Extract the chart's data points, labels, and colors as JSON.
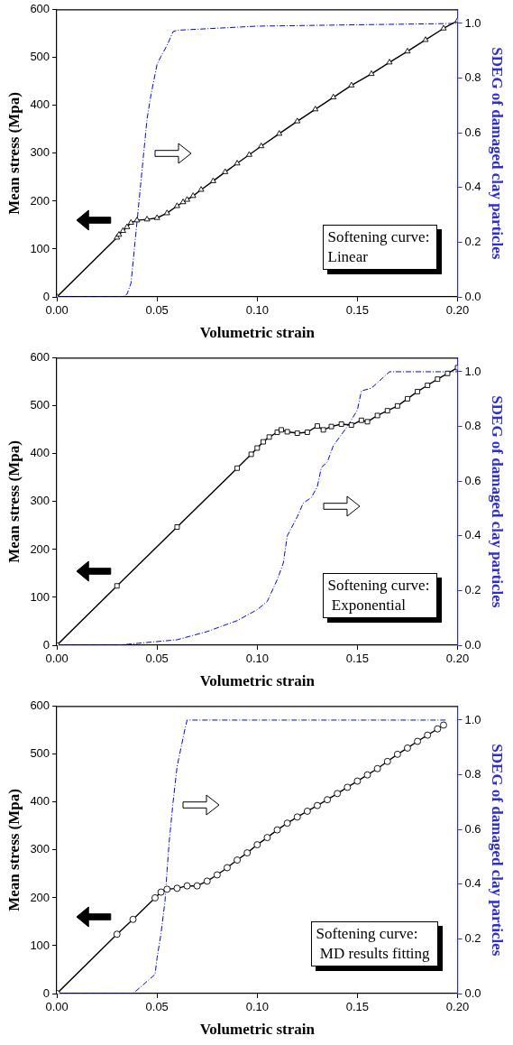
{
  "chart_data": [
    {
      "type": "line",
      "xlabel": "Volumetric strain",
      "ylabel": "Mean stress (Mpa)",
      "y2label": "SDEG of damaged clay particles",
      "xlim": [
        0,
        0.2
      ],
      "xticks": [
        {
          "value": 0,
          "label": "0.00"
        },
        {
          "value": 0.05,
          "label": "0.05"
        },
        {
          "value": 0.1,
          "label": "0.10"
        },
        {
          "value": 0.15,
          "label": "0.15"
        },
        {
          "value": 0.2,
          "label": "0.20"
        }
      ],
      "ylim": [
        0,
        600
      ],
      "yticks": [
        0,
        100,
        200,
        300,
        400,
        500,
        600
      ],
      "y2lim": [
        0,
        1.05
      ],
      "y2ticks": [
        {
          "value": 0,
          "label": "0.0"
        },
        {
          "value": 0.2,
          "label": "0.2"
        },
        {
          "value": 0.4,
          "label": "0.4"
        },
        {
          "value": 0.6,
          "label": "0.6"
        },
        {
          "value": 0.8,
          "label": "0.8"
        },
        {
          "value": 1,
          "label": "1.0"
        }
      ],
      "grid": false,
      "legend": false,
      "annotations": [
        "Softening curve:\nLinear"
      ],
      "series": [
        {
          "color": "#000000",
          "marker": "triangle",
          "line_style": "solid",
          "x": [
            0,
            0.03,
            0.031,
            0.033,
            0.035,
            0.037,
            0.04,
            0.045,
            0.05,
            0.055,
            0.06,
            0.063,
            0.065,
            0.068,
            0.072,
            0.078,
            0.084,
            0.09,
            0.096,
            0.102,
            0.111,
            0.12,
            0.129,
            0.138,
            0.147,
            0.157,
            0.166,
            0.175,
            0.184,
            0.193,
            0.2
          ],
          "values": [
            0,
            124,
            130,
            138,
            146,
            155,
            160,
            162,
            165,
            175,
            190,
            198,
            203,
            211,
            224,
            242,
            261,
            279,
            297,
            315,
            341,
            367,
            392,
            417,
            442,
            466,
            490,
            513,
            537,
            561,
            577
          ]
        },
        {
          "color": "#0000ff",
          "marker": "none",
          "line_style": "dashed",
          "axis": "y2",
          "x": [
            0,
            0.033,
            0.035,
            0.037,
            0.039,
            0.041,
            0.043,
            0.045,
            0.047,
            0.05,
            0.052,
            0.055,
            0.058,
            0.06,
            0.1,
            0.2
          ],
          "values": [
            0,
            0,
            0.01,
            0.05,
            0.2,
            0.35,
            0.5,
            0.65,
            0.74,
            0.85,
            0.88,
            0.92,
            0.97,
            0.975,
            0.99,
            1.0
          ]
        }
      ]
    },
    {
      "type": "line",
      "xlabel": "Volumetric strain",
      "ylabel": "Mean stress (Mpa)",
      "y2label": "SDEG of damaged clay particles",
      "xlim": [
        0,
        0.2
      ],
      "xticks": [
        {
          "value": 0,
          "label": "0.00"
        },
        {
          "value": 0.05,
          "label": "0.05"
        },
        {
          "value": 0.1,
          "label": "0.10"
        },
        {
          "value": 0.15,
          "label": "0.15"
        },
        {
          "value": 0.2,
          "label": "0.20"
        }
      ],
      "ylim": [
        0,
        600
      ],
      "yticks": [
        0,
        100,
        200,
        300,
        400,
        500,
        600
      ],
      "y2lim": [
        0,
        1.05
      ],
      "y2ticks": [
        {
          "value": 0,
          "label": "0.0"
        },
        {
          "value": 0.2,
          "label": "0.2"
        },
        {
          "value": 0.4,
          "label": "0.4"
        },
        {
          "value": 0.6,
          "label": "0.6"
        },
        {
          "value": 0.8,
          "label": "0.8"
        },
        {
          "value": 1,
          "label": "1.0"
        }
      ],
      "grid": false,
      "legend": false,
      "annotations": [
        "Softening curve:\n Exponential"
      ],
      "series": [
        {
          "color": "#000000",
          "marker": "square",
          "line_style": "solid",
          "x": [
            0,
            0.03,
            0.06,
            0.09,
            0.097,
            0.1,
            0.103,
            0.106,
            0.11,
            0.112,
            0.115,
            0.12,
            0.125,
            0.13,
            0.133,
            0.137,
            0.142,
            0.147,
            0.152,
            0.155,
            0.16,
            0.165,
            0.17,
            0.175,
            0.18,
            0.185,
            0.19,
            0.195,
            0.2
          ],
          "values": [
            0,
            124,
            247,
            370,
            399,
            412,
            425,
            435,
            445,
            450,
            446,
            443,
            445,
            458,
            450,
            457,
            462,
            460,
            470,
            467,
            480,
            490,
            500,
            515,
            530,
            543,
            556,
            568,
            580
          ]
        },
        {
          "color": "#0000ff",
          "marker": "none",
          "line_style": "dashed",
          "axis": "y2",
          "x": [
            0,
            0.03,
            0.06,
            0.075,
            0.09,
            0.1,
            0.105,
            0.11,
            0.113,
            0.115,
            0.12,
            0.123,
            0.127,
            0.13,
            0.132,
            0.135,
            0.138,
            0.142,
            0.145,
            0.15,
            0.152,
            0.157,
            0.163,
            0.166,
            0.2
          ],
          "values": [
            0,
            0,
            0.02,
            0.05,
            0.09,
            0.13,
            0.16,
            0.24,
            0.3,
            0.4,
            0.47,
            0.52,
            0.54,
            0.58,
            0.65,
            0.67,
            0.73,
            0.77,
            0.8,
            0.86,
            0.93,
            0.94,
            0.98,
            1.0,
            1.0
          ]
        }
      ]
    },
    {
      "type": "line",
      "xlabel": "Volumetric strain",
      "ylabel": "Mean stress (Mpa)",
      "y2label": "SDEG of damaged clay particles",
      "xlim": [
        0,
        0.2
      ],
      "xticks": [
        {
          "value": 0,
          "label": "0.00"
        },
        {
          "value": 0.05,
          "label": "0.05"
        },
        {
          "value": 0.1,
          "label": "0.10"
        },
        {
          "value": 0.15,
          "label": "0.15"
        },
        {
          "value": 0.2,
          "label": "0.20"
        }
      ],
      "ylim": [
        0,
        600
      ],
      "yticks": [
        0,
        100,
        200,
        300,
        400,
        500,
        600
      ],
      "y2lim": [
        0,
        1.05
      ],
      "y2ticks": [
        {
          "value": 0,
          "label": "0.0"
        },
        {
          "value": 0.2,
          "label": "0.2"
        },
        {
          "value": 0.4,
          "label": "0.4"
        },
        {
          "value": 0.6,
          "label": "0.6"
        },
        {
          "value": 0.8,
          "label": "0.8"
        },
        {
          "value": 1,
          "label": "1.0"
        }
      ],
      "grid": false,
      "legend": false,
      "annotations": [
        "Softening curve:\n MD results fitting"
      ],
      "series": [
        {
          "color": "#000000",
          "marker": "circle",
          "line_style": "solid",
          "x": [
            0,
            0.03,
            0.038,
            0.049,
            0.052,
            0.055,
            0.06,
            0.065,
            0.07,
            0.075,
            0.08,
            0.085,
            0.09,
            0.095,
            0.1,
            0.105,
            0.11,
            0.115,
            0.12,
            0.125,
            0.13,
            0.135,
            0.14,
            0.145,
            0.15,
            0.155,
            0.16,
            0.165,
            0.17,
            0.175,
            0.18,
            0.185,
            0.19,
            0.193
          ],
          "values": [
            0,
            124,
            155,
            200,
            212,
            218,
            220,
            225,
            225,
            235,
            248,
            263,
            279,
            294,
            311,
            326,
            342,
            356,
            369,
            381,
            393,
            405,
            418,
            431,
            444,
            457,
            470,
            485,
            500,
            513,
            527,
            540,
            553,
            561
          ]
        },
        {
          "color": "#0000ff",
          "marker": "none",
          "line_style": "dashed",
          "axis": "y2",
          "x": [
            0,
            0.038,
            0.049,
            0.05,
            0.052,
            0.054,
            0.055,
            0.056,
            0.058,
            0.06,
            0.062,
            0.064,
            0.065,
            0.194
          ],
          "values": [
            0,
            0,
            0.07,
            0.13,
            0.22,
            0.34,
            0.45,
            0.55,
            0.7,
            0.83,
            0.9,
            0.97,
            1.0,
            1.0
          ]
        }
      ]
    }
  ]
}
